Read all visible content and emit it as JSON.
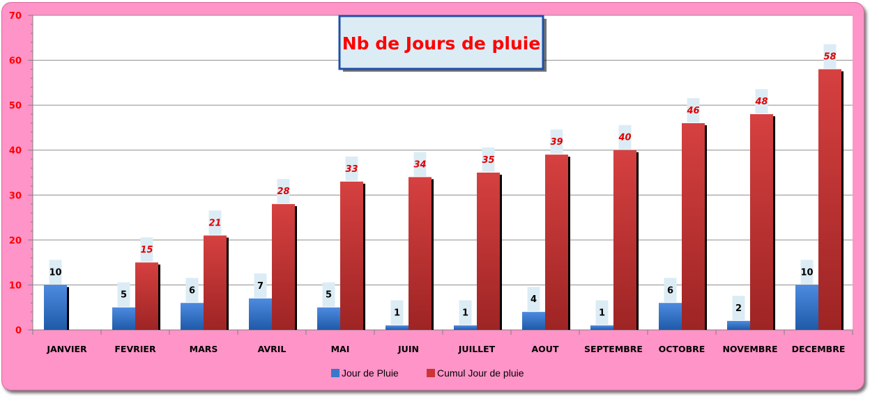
{
  "chart_data": {
    "type": "bar",
    "title": "Nb de Jours de pluie",
    "categories": [
      "JANVIER",
      "FEVRIER",
      "MARS",
      "AVRIL",
      "MAI",
      "JUIN",
      "JUILLET",
      "AOUT",
      "SEPTEMBRE",
      "OCTOBRE",
      "NOVEMBRE",
      "DECEMBRE"
    ],
    "series": [
      {
        "name": "Jour de Pluie",
        "color": "#3a78c9",
        "values": [
          10,
          5,
          6,
          7,
          5,
          1,
          1,
          4,
          1,
          6,
          2,
          10
        ]
      },
      {
        "name": "Cumul Jour de pluie",
        "color": "#cc3535",
        "values": [
          null,
          15,
          21,
          28,
          33,
          34,
          35,
          39,
          40,
          46,
          48,
          58
        ]
      }
    ],
    "ylim": [
      0,
      70
    ],
    "yticks": [
      0,
      10,
      20,
      30,
      40,
      50,
      60,
      70
    ],
    "grid": true,
    "legend": "bottom",
    "xlabel": "",
    "ylabel": ""
  },
  "colors": {
    "frame_background": "#ff94c8",
    "plot_background": "#ffffff",
    "title_box_background": "#dcecf5",
    "title_box_border": "#1f4fa8",
    "axis_label_color": "#ff0000"
  }
}
